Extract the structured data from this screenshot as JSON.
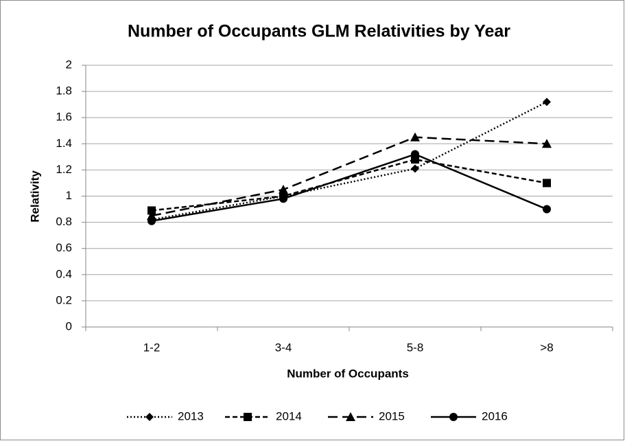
{
  "chart_data": {
    "type": "line",
    "title": "Number of Occupants GLM Relativities by Year",
    "x_label": "Number of Occupants",
    "y_label": "Relativity",
    "categories": [
      "1-2",
      "3-4",
      "5-8",
      ">8"
    ],
    "series": [
      {
        "name": "2013",
        "color": "#000000",
        "dash": "dotted",
        "marker": "diamond",
        "values": [
          0.82,
          1.0,
          1.21,
          1.72
        ]
      },
      {
        "name": "2014",
        "color": "#000000",
        "dash": "dashed",
        "marker": "square",
        "values": [
          0.89,
          1.0,
          1.28,
          1.1
        ]
      },
      {
        "name": "2015",
        "color": "#000000",
        "dash": "long-dash",
        "marker": "triangle",
        "values": [
          0.85,
          1.05,
          1.45,
          1.4
        ]
      },
      {
        "name": "2016",
        "color": "#000000",
        "dash": "solid",
        "marker": "circle",
        "values": [
          0.81,
          0.98,
          1.32,
          0.9
        ]
      }
    ],
    "ylim": [
      0,
      2
    ],
    "yticks": [
      0,
      0.2,
      0.4,
      0.6,
      0.8,
      1,
      1.2,
      1.4,
      1.6,
      1.8,
      2
    ],
    "grid": true,
    "legend": "bottom"
  }
}
